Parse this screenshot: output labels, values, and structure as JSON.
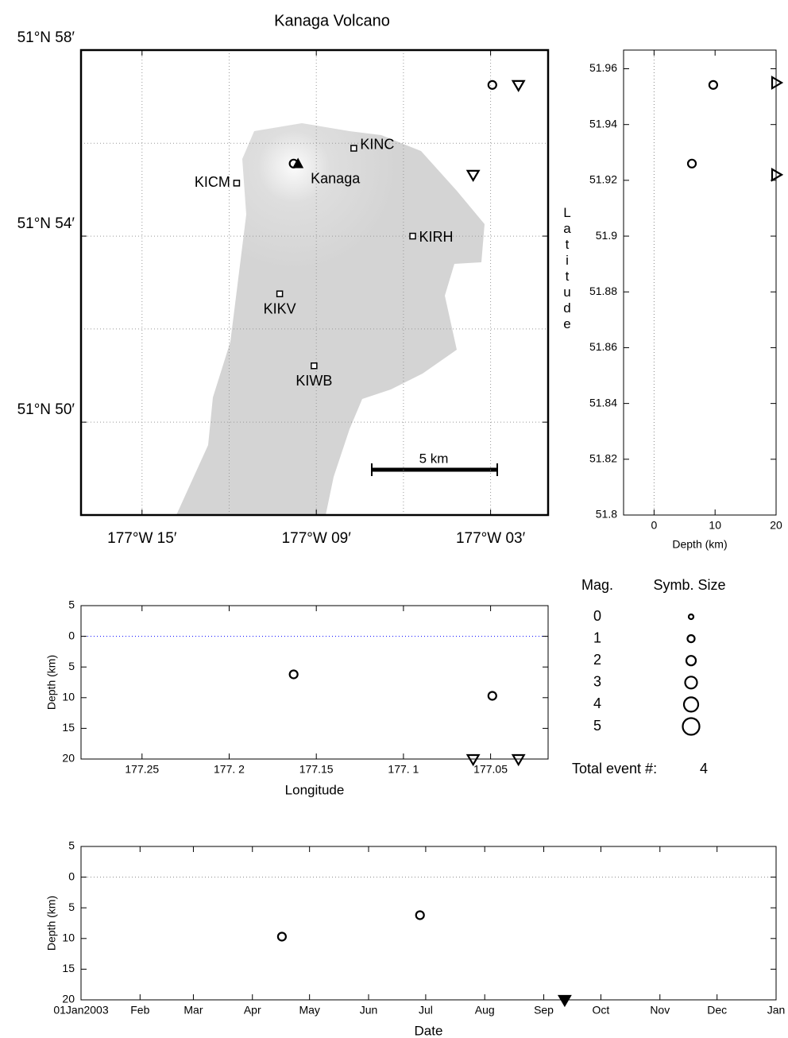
{
  "chart_data": [
    {
      "type": "map",
      "title": "Kanaga Volcano",
      "xlim": [
        177.285,
        177.017
      ],
      "ylim": [
        51.8,
        51.9667
      ],
      "xticks": [
        {
          "value": 177.25,
          "label": "177°W 15′"
        },
        {
          "value": 177.15,
          "label": "177°W 09′"
        },
        {
          "value": 177.05,
          "label": "177°W 03′"
        }
      ],
      "yticks": [
        {
          "value": 51.9667,
          "label": "51°N 58′"
        },
        {
          "value": 51.9,
          "label": "51°N 54′"
        },
        {
          "value": 51.8333,
          "label": "51°N 50′"
        }
      ],
      "xgrid": [
        177.25,
        177.2,
        177.15,
        177.1,
        177.05
      ],
      "ygrid": [
        51.9667,
        51.9333,
        51.9,
        51.8667,
        51.8333
      ],
      "grid": true,
      "stations": {
        "labels": [
          "KINC",
          "KICM",
          "KIRH",
          "KIKV",
          "KIWB"
        ],
        "x": [
          177.1285,
          177.1957,
          177.0947,
          177.171,
          177.1513
        ],
        "values": [
          51.9315,
          51.919,
          51.9,
          51.8793,
          51.8535
        ]
      },
      "volcano": {
        "label": "Kanaga",
        "x": 177.1605,
        "value": 51.9258
      },
      "scale_bar": "5 km",
      "series": [
        {
          "marker": "circle",
          "x": [
            177.049,
            177.163
          ],
          "values": [
            51.9542,
            51.926
          ]
        },
        {
          "marker": "triangle-down",
          "x": [
            177.034,
            177.06
          ],
          "values": [
            51.9542,
            51.922
          ]
        }
      ]
    },
    {
      "type": "scatter",
      "xlabel": "Depth (km)",
      "ylabel": "Latitude",
      "xlim": [
        -5,
        20
      ],
      "ylim": [
        51.8,
        51.9667
      ],
      "xticks": [
        0,
        10,
        20
      ],
      "yticks": [
        51.8,
        51.82,
        51.84,
        51.86,
        51.88,
        51.9,
        51.92,
        51.94,
        51.96
      ],
      "zero_line": "x",
      "zero_line_color": "#888888",
      "series": [
        {
          "marker": "circle",
          "x": [
            9.7,
            6.2
          ],
          "values": [
            51.9542,
            51.926
          ]
        },
        {
          "marker": "triangle-right",
          "x": [
            20,
            20
          ],
          "values": [
            51.955,
            51.922
          ]
        }
      ]
    },
    {
      "type": "scatter",
      "xlabel": "Longitude",
      "ylabel": "Depth (km)",
      "xlim": [
        177.285,
        177.017
      ],
      "ylim": [
        20,
        -5
      ],
      "xticks": [
        177.25,
        {
          "value": 177.2,
          "label": "177. 2"
        },
        177.15,
        {
          "value": 177.1,
          "label": "177. 1"
        },
        177.05
      ],
      "yticks": [
        {
          "value": -5,
          "label": "5"
        },
        0,
        5,
        10,
        15,
        20
      ],
      "zero_line": "y",
      "zero_line_color": "#0000ff",
      "series": [
        {
          "marker": "circle",
          "x": [
            177.163,
            177.049
          ],
          "values": [
            6.2,
            9.7
          ]
        },
        {
          "marker": "triangle-down",
          "x": [
            177.06,
            177.034
          ],
          "values": [
            20,
            20
          ]
        }
      ]
    },
    {
      "type": "scatter",
      "xlabel": "Date",
      "ylabel": "Depth (km)",
      "xlim": [
        0,
        365
      ],
      "ylim": [
        20,
        -5
      ],
      "xticks": [
        {
          "value": 0,
          "label": "01Jan2003"
        },
        {
          "value": 31,
          "label": "Feb"
        },
        {
          "value": 59,
          "label": "Mar"
        },
        {
          "value": 90,
          "label": "Apr"
        },
        {
          "value": 120,
          "label": "May"
        },
        {
          "value": 151,
          "label": "Jun"
        },
        {
          "value": 181,
          "label": "Jul"
        },
        {
          "value": 212,
          "label": "Aug"
        },
        {
          "value": 243,
          "label": "Sep"
        },
        {
          "value": 273,
          "label": "Oct"
        },
        {
          "value": 304,
          "label": "Nov"
        },
        {
          "value": 334,
          "label": "Dec"
        },
        {
          "value": 365,
          "label": "Jan"
        }
      ],
      "yticks": [
        {
          "value": -5,
          "label": "5"
        },
        0,
        5,
        10,
        15,
        20
      ],
      "zero_line": "y",
      "zero_line_color": "#888888",
      "series": [
        {
          "marker": "circle",
          "x": [
            105.5,
            178
          ],
          "values": [
            9.7,
            6.2
          ]
        },
        {
          "marker": "triangle-down",
          "filled": true,
          "x": [
            254
          ],
          "values": [
            20
          ]
        }
      ]
    }
  ],
  "legend": {
    "title": "Mag.",
    "size_title": "Symb. Size",
    "magnitudes": [
      0,
      1,
      2,
      3,
      4,
      5
    ]
  },
  "total": {
    "label": "Total event #:",
    "value": 4
  }
}
